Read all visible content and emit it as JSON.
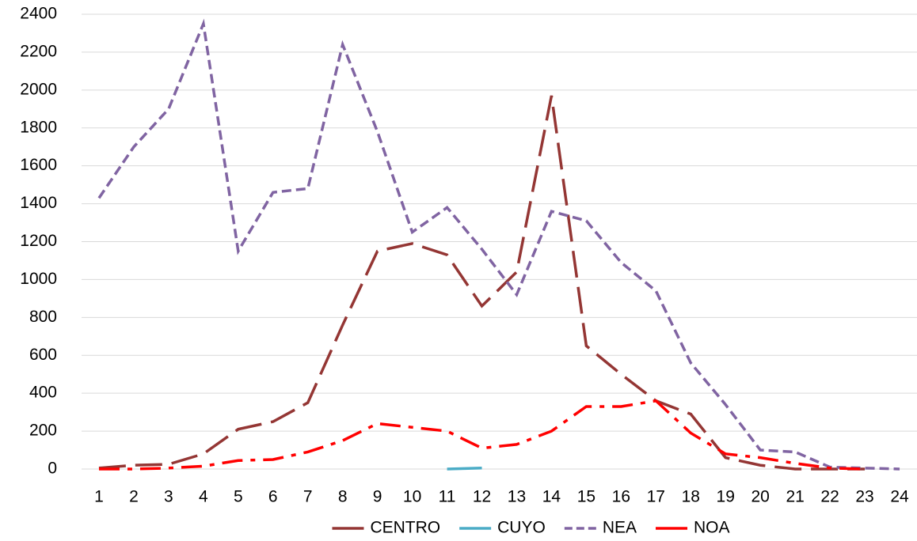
{
  "chart_data": {
    "type": "line",
    "categories": [
      "1",
      "2",
      "3",
      "4",
      "5",
      "6",
      "7",
      "8",
      "9",
      "10",
      "11",
      "12",
      "13",
      "14",
      "15",
      "16",
      "17",
      "18",
      "19",
      "20",
      "21",
      "22",
      "23",
      "24"
    ],
    "series": [
      {
        "name": "CENTRO",
        "color": "#943634",
        "dash": "long-dash",
        "values": [
          5,
          20,
          25,
          80,
          210,
          250,
          350,
          760,
          1150,
          1190,
          1130,
          860,
          1040,
          1970,
          650,
          500,
          360,
          290,
          60,
          20,
          0,
          0,
          0,
          null
        ]
      },
      {
        "name": "CUYO",
        "color": "#4bacc6",
        "dash": "solid",
        "values": [
          null,
          null,
          null,
          null,
          null,
          null,
          null,
          null,
          null,
          null,
          0,
          5,
          null,
          null,
          null,
          null,
          null,
          null,
          null,
          null,
          null,
          null,
          null,
          null
        ]
      },
      {
        "name": "NEA",
        "color": "#8064a2",
        "dash": "short-dash",
        "values": [
          1430,
          1700,
          1900,
          2350,
          1150,
          1460,
          1480,
          2240,
          1780,
          1250,
          1380,
          1160,
          920,
          1360,
          1310,
          1090,
          940,
          560,
          340,
          100,
          90,
          10,
          5,
          0
        ]
      },
      {
        "name": "NOA",
        "color": "#ff0000",
        "dash": "dash-dot",
        "values": [
          0,
          0,
          5,
          15,
          45,
          50,
          90,
          150,
          240,
          220,
          200,
          110,
          130,
          200,
          330,
          330,
          360,
          190,
          80,
          60,
          30,
          5,
          0,
          null
        ]
      }
    ],
    "ylim": [
      0,
      2400
    ],
    "yticks": [
      0,
      200,
      400,
      600,
      800,
      1000,
      1200,
      1400,
      1600,
      1800,
      2000,
      2200,
      2400
    ],
    "grid": true,
    "legend": "bottom"
  }
}
